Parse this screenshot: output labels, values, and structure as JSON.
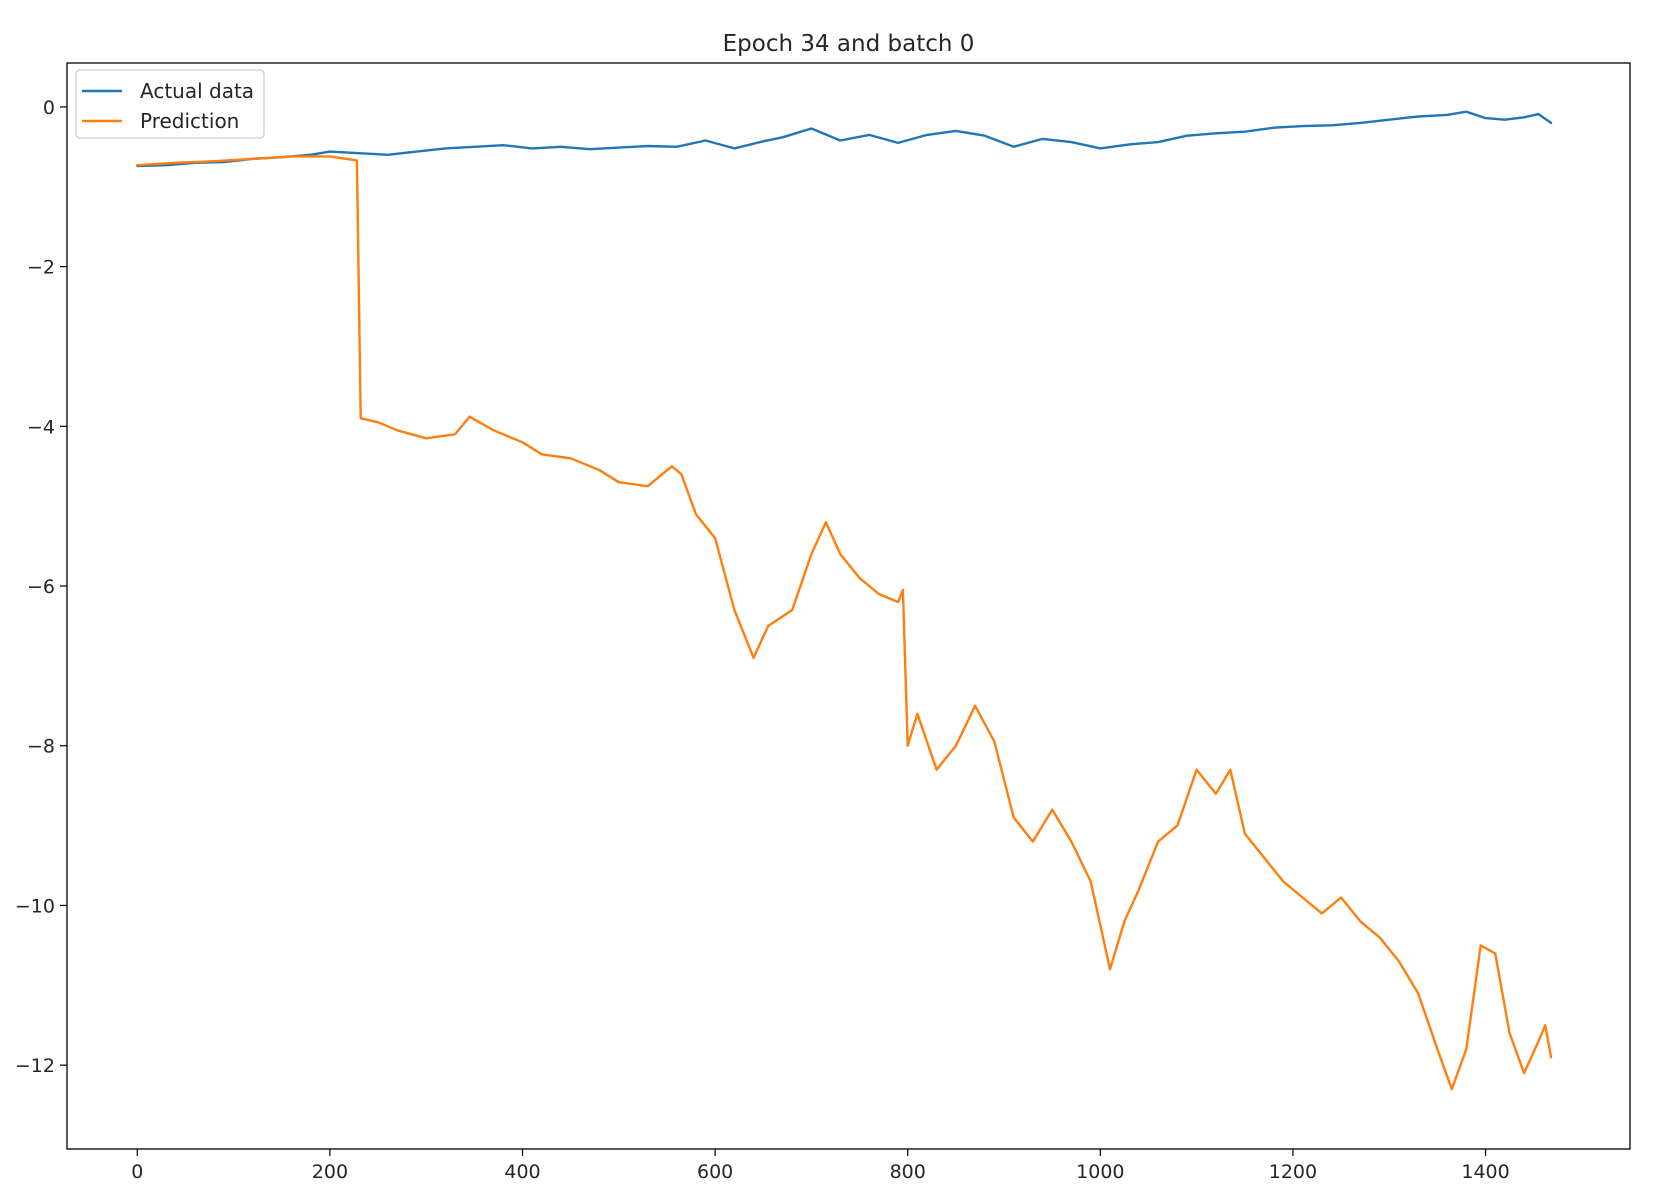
{
  "chart_data": {
    "type": "line",
    "title": "Epoch 34 and batch 0",
    "xlabel": "",
    "ylabel": "",
    "xlim": [
      -73,
      1550
    ],
    "ylim": [
      -13.05,
      0.55
    ],
    "xticks": [
      0,
      200,
      400,
      600,
      800,
      1000,
      1200,
      1400
    ],
    "yticks": [
      0,
      -2,
      -4,
      -6,
      -8,
      -10,
      -12
    ],
    "xtick_labels": [
      "0",
      "200",
      "400",
      "600",
      "800",
      "1000",
      "1200",
      "1400"
    ],
    "ytick_labels": [
      "0",
      "−2",
      "−4",
      "−6",
      "−8",
      "−10",
      "−12"
    ],
    "grid": false,
    "legend_position": "top-left",
    "series": [
      {
        "name": "Actual data",
        "color": "#1f77b4",
        "x": [
          0,
          30,
          60,
          90,
          120,
          150,
          180,
          200,
          230,
          260,
          290,
          320,
          350,
          380,
          410,
          440,
          470,
          500,
          530,
          560,
          590,
          620,
          650,
          670,
          700,
          730,
          760,
          790,
          820,
          850,
          880,
          910,
          940,
          970,
          1000,
          1030,
          1060,
          1090,
          1120,
          1150,
          1180,
          1210,
          1240,
          1270,
          1300,
          1330,
          1360,
          1380,
          1400,
          1420,
          1440,
          1455,
          1468
        ],
        "y": [
          -0.74,
          -0.73,
          -0.7,
          -0.69,
          -0.65,
          -0.63,
          -0.6,
          -0.56,
          -0.58,
          -0.6,
          -0.56,
          -0.52,
          -0.5,
          -0.48,
          -0.52,
          -0.5,
          -0.53,
          -0.51,
          -0.49,
          -0.5,
          -0.42,
          -0.52,
          -0.43,
          -0.38,
          -0.27,
          -0.42,
          -0.35,
          -0.45,
          -0.35,
          -0.3,
          -0.36,
          -0.5,
          -0.4,
          -0.44,
          -0.52,
          -0.47,
          -0.44,
          -0.36,
          -0.33,
          -0.31,
          -0.26,
          -0.24,
          -0.23,
          -0.2,
          -0.16,
          -0.12,
          -0.1,
          -0.06,
          -0.14,
          -0.16,
          -0.13,
          -0.09,
          -0.2
        ]
      },
      {
        "name": "Prediction",
        "color": "#ff7f0e",
        "x": [
          0,
          40,
          80,
          120,
          160,
          200,
          228,
          232,
          250,
          270,
          300,
          330,
          345,
          370,
          400,
          420,
          450,
          480,
          500,
          530,
          555,
          565,
          580,
          600,
          620,
          640,
          655,
          680,
          700,
          715,
          730,
          750,
          770,
          790,
          795,
          800,
          810,
          830,
          850,
          870,
          890,
          910,
          930,
          950,
          970,
          990,
          1010,
          1025,
          1040,
          1060,
          1080,
          1100,
          1120,
          1135,
          1150,
          1170,
          1190,
          1210,
          1230,
          1250,
          1270,
          1290,
          1310,
          1330,
          1350,
          1365,
          1380,
          1395,
          1410,
          1425,
          1440,
          1455,
          1462,
          1468
        ],
        "y": [
          -0.73,
          -0.7,
          -0.68,
          -0.65,
          -0.62,
          -0.62,
          -0.67,
          -3.9,
          -3.95,
          -4.05,
          -4.15,
          -4.1,
          -3.88,
          -4.05,
          -4.2,
          -4.35,
          -4.4,
          -4.55,
          -4.7,
          -4.75,
          -4.5,
          -4.6,
          -5.1,
          -5.4,
          -6.3,
          -6.9,
          -6.5,
          -6.3,
          -5.6,
          -5.2,
          -5.6,
          -5.9,
          -6.1,
          -6.2,
          -6.05,
          -8.0,
          -7.6,
          -8.3,
          -8.0,
          -7.5,
          -7.95,
          -8.9,
          -9.2,
          -8.8,
          -9.2,
          -9.7,
          -10.8,
          -10.2,
          -9.8,
          -9.2,
          -9.0,
          -8.3,
          -8.6,
          -8.3,
          -9.1,
          -9.4,
          -9.7,
          -9.9,
          -10.1,
          -9.9,
          -10.2,
          -10.4,
          -10.7,
          -11.1,
          -11.8,
          -12.3,
          -11.8,
          -10.5,
          -10.6,
          -11.6,
          -12.1,
          -11.7,
          -11.5,
          -11.9
        ]
      }
    ]
  }
}
